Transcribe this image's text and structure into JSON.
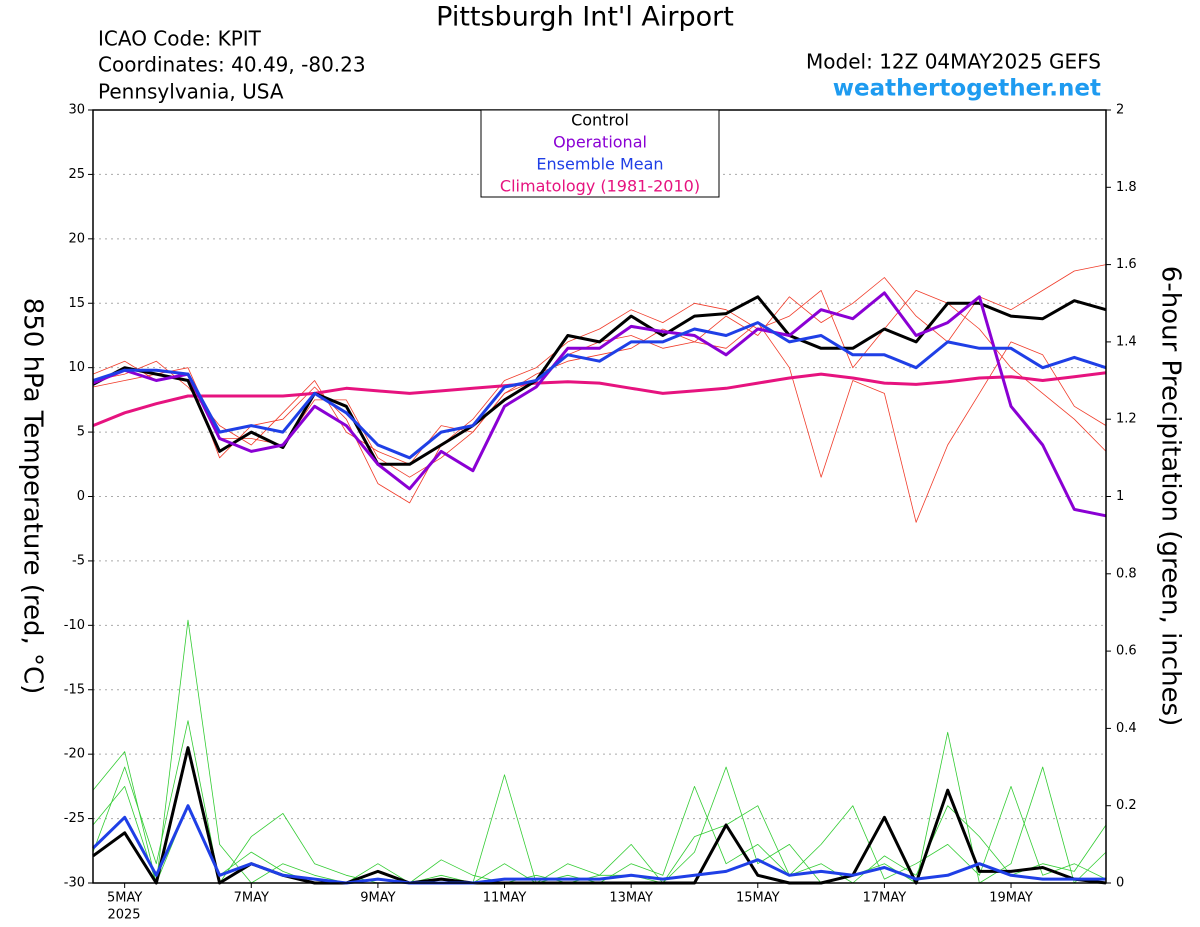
{
  "chart_data": {
    "type": "line",
    "title": "Pittsburgh Int'l Airport",
    "info": [
      "ICAO Code: KPIT",
      "Coordinates: 40.49, -80.23",
      "Pennsylvania, USA"
    ],
    "model": "Model: 12Z 04MAY2025 GEFS",
    "site": "weathertogether.net",
    "ylabel": "850 hPa Temperature (red, °C)",
    "y2label": "6-hour Precipitation (green, inches)",
    "year_label": "2025",
    "x": [
      4.5,
      5,
      5.5,
      6,
      6.5,
      7,
      7.5,
      8,
      8.5,
      9,
      9.5,
      10,
      10.5,
      11,
      11.5,
      12,
      12.5,
      13,
      13.5,
      14,
      14.5,
      15,
      15.5,
      16,
      16.5,
      17,
      17.5,
      18,
      18.5,
      19,
      19.5,
      20,
      20.5
    ],
    "xlim": [
      4.5,
      20.5
    ],
    "xticks": [
      {
        "value": 5,
        "label": "5MAY"
      },
      {
        "value": 7,
        "label": "7MAY"
      },
      {
        "value": 9,
        "label": "9MAY"
      },
      {
        "value": 11,
        "label": "11MAY"
      },
      {
        "value": 13,
        "label": "13MAY"
      },
      {
        "value": 15,
        "label": "15MAY"
      },
      {
        "value": 17,
        "label": "17MAY"
      },
      {
        "value": 19,
        "label": "19MAY"
      }
    ],
    "ylim": [
      -30,
      30
    ],
    "yticks": [
      -30,
      -25,
      -20,
      -15,
      -10,
      -5,
      0,
      5,
      10,
      15,
      20,
      25,
      30
    ],
    "y2lim": [
      0,
      2
    ],
    "y2ticks": [
      0,
      0.2,
      0.4,
      0.6,
      0.8,
      1,
      1.2,
      1.4,
      1.6,
      1.8,
      2
    ],
    "grid": true,
    "legend": "top",
    "series": [
      {
        "color": "#f03c2a",
        "values": [
          9.5,
          10.5,
          9,
          9.5,
          3,
          5.5,
          6,
          8.5,
          6,
          1,
          -0.5,
          4,
          6,
          9,
          10,
          12,
          13,
          14.5,
          13.5,
          15,
          14.5,
          13,
          14,
          16,
          10,
          13,
          16,
          15,
          13,
          10,
          8,
          6,
          3.5
        ]
      },
      {
        "color": "#f03c2a",
        "values": [
          9,
          9.5,
          10.5,
          8.5,
          5.5,
          4,
          6.5,
          9,
          5,
          3.5,
          2.5,
          5.5,
          5,
          8,
          9.5,
          10.5,
          11,
          11.5,
          13,
          12,
          14,
          12.5,
          15.5,
          13.5,
          15,
          17,
          14,
          12,
          15.5,
          14.5,
          16,
          17.5,
          18
        ]
      },
      {
        "color": "#f03c2a",
        "values": [
          8.5,
          9,
          9.5,
          10,
          4.5,
          4.5,
          4,
          7.5,
          7.5,
          3,
          1.5,
          3,
          5,
          8,
          9,
          11,
          12,
          12.5,
          11.5,
          12,
          11.5,
          13.5,
          10,
          1.5,
          9,
          8,
          -2,
          4,
          8,
          12,
          11,
          7,
          5.5
        ]
      },
      {
        "color": "#33cc33",
        "axis": "y2",
        "values": [
          0.24,
          0.34,
          0,
          0.2,
          0.02,
          0.08,
          0.03,
          0,
          0,
          0,
          0,
          0.02,
          0,
          0.28,
          0,
          0.05,
          0.02,
          0.1,
          0,
          0.08,
          0.3,
          0.05,
          0.1,
          0,
          0.02,
          0.05,
          0,
          0.39,
          0,
          0.05,
          0.3,
          0,
          0.08
        ]
      },
      {
        "color": "#33cc33",
        "axis": "y2",
        "values": [
          0.15,
          0.25,
          0,
          0.68,
          0.1,
          0,
          0.05,
          0.02,
          0,
          0.05,
          0,
          0,
          0,
          0.05,
          0,
          0.02,
          0,
          0.05,
          0.02,
          0.25,
          0.05,
          0.1,
          0.02,
          0.1,
          0.2,
          0.01,
          0.05,
          0.1,
          0.02,
          0.25,
          0.02,
          0.05,
          0.01
        ]
      },
      {
        "color": "#33cc33",
        "axis": "y2",
        "values": [
          0.08,
          0.3,
          0.05,
          0.42,
          0,
          0.12,
          0.18,
          0.05,
          0.02,
          0,
          0,
          0.06,
          0.02,
          0,
          0.02,
          0,
          0.02,
          0.02,
          0,
          0.12,
          0.15,
          0.2,
          0.02,
          0.05,
          0,
          0.07,
          0.02,
          0.2,
          0.12,
          0.02,
          0.05,
          0.03,
          0.15
        ]
      },
      {
        "color": "#000000",
        "axis": "y2",
        "values": [
          0.07,
          0.13,
          0,
          0.35,
          0,
          0.05,
          0.02,
          0,
          0,
          0.03,
          0,
          0.01,
          0,
          0,
          0,
          0,
          0,
          0,
          0,
          0,
          0.15,
          0.02,
          0,
          0,
          0.02,
          0.17,
          0,
          0.24,
          0.03,
          0.03,
          0.04,
          0.01,
          0
        ]
      },
      {
        "color": "#1f3fe6",
        "axis": "y2",
        "values": [
          0.09,
          0.17,
          0.02,
          0.2,
          0.02,
          0.05,
          0.02,
          0.01,
          0,
          0.01,
          0,
          0,
          0,
          0.01,
          0.01,
          0.01,
          0.01,
          0.02,
          0.01,
          0.02,
          0.03,
          0.06,
          0.02,
          0.03,
          0.02,
          0.04,
          0.01,
          0.02,
          0.05,
          0.02,
          0.01,
          0.01,
          0.01
        ]
      },
      {
        "name": "Climatology (1981-2010)",
        "color": "#e6137f",
        "values": [
          5.5,
          6.5,
          7.2,
          7.8,
          7.8,
          7.8,
          7.8,
          8,
          8.4,
          8.2,
          8,
          8.2,
          8.4,
          8.6,
          8.8,
          8.9,
          8.8,
          8.4,
          8,
          8.2,
          8.4,
          8.8,
          9.2,
          9.5,
          9.2,
          8.8,
          8.7,
          8.9,
          9.2,
          9.3,
          9,
          9.3,
          9.6
        ]
      },
      {
        "name": "Control",
        "color": "#000000",
        "values": [
          8.7,
          10,
          9.5,
          9,
          3.5,
          5,
          3.8,
          8,
          7,
          2.5,
          2.5,
          4,
          5.5,
          7.5,
          9,
          12.5,
          12,
          14,
          12.5,
          14,
          14.2,
          15.5,
          12.5,
          11.5,
          11.5,
          13,
          12,
          15,
          15,
          14,
          13.8,
          15.2,
          14.5
        ]
      },
      {
        "name": "Operational",
        "color": "#8a00d4",
        "values": [
          8.8,
          9.8,
          9,
          9.5,
          4.5,
          3.5,
          4,
          7,
          5.5,
          2.5,
          0.6,
          3.5,
          2,
          7,
          8.5,
          11.5,
          11.5,
          13.2,
          12.8,
          12.5,
          11,
          13,
          12.5,
          14.5,
          13.8,
          15.8,
          12.5,
          13.5,
          15.5,
          7,
          4,
          -1,
          -1.5
        ]
      },
      {
        "name": "Ensemble Mean",
        "color": "#1f3fe6",
        "values": [
          9,
          9.8,
          9.8,
          9.5,
          5,
          5.5,
          5,
          8,
          6.5,
          4,
          3,
          5,
          5.5,
          8.5,
          9,
          11,
          10.5,
          12,
          12,
          13,
          12.5,
          13.5,
          12,
          12.5,
          11,
          11,
          10,
          12,
          11.5,
          11.5,
          10,
          10.8,
          10
        ]
      }
    ]
  }
}
